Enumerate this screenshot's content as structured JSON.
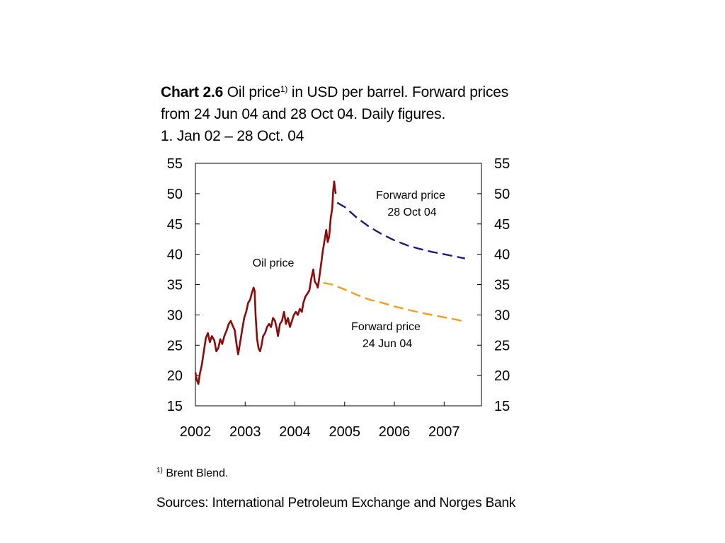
{
  "header": {
    "chart_number": "Chart 2.6",
    "title_part1": "Oil price",
    "title_superscript": "1)",
    "title_part2": "in USD per barrel. Forward prices",
    "title_line2": "from 24 Jun 04 and 28 Oct 04. Daily figures.",
    "title_line3": "1. Jan 02 – 28 Oct. 04"
  },
  "footer": {
    "footnote_marker": "1)",
    "footnote_text": "Brent Blend.",
    "sources": "Sources: International Petroleum Exchange and Norges Bank"
  },
  "chart_data": {
    "type": "line",
    "xlim": [
      2002,
      2007.75
    ],
    "ylim": [
      15,
      55
    ],
    "x_ticks": [
      "2002",
      "2003",
      "2004",
      "2005",
      "2006",
      "2007"
    ],
    "y_ticks": [
      "15",
      "20",
      "25",
      "30",
      "35",
      "40",
      "45",
      "50",
      "55"
    ],
    "grid": false,
    "colors": {
      "oil": "#8b0a0a",
      "forward_oct": "#1a1a80",
      "forward_jun": "#f59e1b"
    },
    "annotations": {
      "oil_price": "Oil price",
      "forward_oct_line1": "Forward price",
      "forward_oct_line2": "28 Oct 04",
      "forward_jun_line1": "Forward price",
      "forward_jun_line2": "24 Jun 04"
    },
    "series": [
      {
        "key": "oil_price",
        "style": "solid",
        "points": [
          [
            2002.0,
            20.5
          ],
          [
            2002.03,
            19.2
          ],
          [
            2002.06,
            18.6
          ],
          [
            2002.09,
            20.3
          ],
          [
            2002.13,
            21.8
          ],
          [
            2002.17,
            24.0
          ],
          [
            2002.21,
            26.2
          ],
          [
            2002.25,
            27.0
          ],
          [
            2002.29,
            25.5
          ],
          [
            2002.33,
            26.5
          ],
          [
            2002.38,
            25.8
          ],
          [
            2002.42,
            24.0
          ],
          [
            2002.46,
            24.5
          ],
          [
            2002.5,
            26.0
          ],
          [
            2002.54,
            25.2
          ],
          [
            2002.58,
            26.5
          ],
          [
            2002.63,
            27.5
          ],
          [
            2002.67,
            28.5
          ],
          [
            2002.71,
            29.0
          ],
          [
            2002.75,
            28.2
          ],
          [
            2002.79,
            27.5
          ],
          [
            2002.83,
            25.0
          ],
          [
            2002.86,
            23.5
          ],
          [
            2002.9,
            25.5
          ],
          [
            2002.94,
            27.5
          ],
          [
            2002.98,
            29.5
          ],
          [
            2003.02,
            30.5
          ],
          [
            2003.06,
            32.0
          ],
          [
            2003.1,
            32.5
          ],
          [
            2003.13,
            33.5
          ],
          [
            2003.17,
            34.5
          ],
          [
            2003.19,
            34.0
          ],
          [
            2003.21,
            30.0
          ],
          [
            2003.24,
            26.0
          ],
          [
            2003.27,
            24.5
          ],
          [
            2003.3,
            24.0
          ],
          [
            2003.33,
            25.0
          ],
          [
            2003.36,
            26.5
          ],
          [
            2003.4,
            27.0
          ],
          [
            2003.44,
            28.0
          ],
          [
            2003.48,
            28.5
          ],
          [
            2003.52,
            28.0
          ],
          [
            2003.56,
            29.5
          ],
          [
            2003.6,
            29.0
          ],
          [
            2003.63,
            28.0
          ],
          [
            2003.66,
            26.5
          ],
          [
            2003.7,
            28.5
          ],
          [
            2003.74,
            29.0
          ],
          [
            2003.78,
            30.5
          ],
          [
            2003.82,
            28.5
          ],
          [
            2003.86,
            29.5
          ],
          [
            2003.9,
            28.0
          ],
          [
            2003.94,
            29.0
          ],
          [
            2003.98,
            30.0
          ],
          [
            2004.02,
            30.5
          ],
          [
            2004.06,
            30.0
          ],
          [
            2004.1,
            31.0
          ],
          [
            2004.14,
            30.5
          ],
          [
            2004.17,
            32.0
          ],
          [
            2004.21,
            33.0
          ],
          [
            2004.25,
            33.5
          ],
          [
            2004.29,
            34.0
          ],
          [
            2004.33,
            36.0
          ],
          [
            2004.37,
            37.5
          ],
          [
            2004.4,
            35.5
          ],
          [
            2004.44,
            35.0
          ],
          [
            2004.46,
            34.5
          ],
          [
            2004.48,
            35.5
          ],
          [
            2004.52,
            38.0
          ],
          [
            2004.56,
            40.5
          ],
          [
            2004.6,
            42.5
          ],
          [
            2004.63,
            44.0
          ],
          [
            2004.66,
            42.0
          ],
          [
            2004.69,
            43.0
          ],
          [
            2004.72,
            46.0
          ],
          [
            2004.75,
            47.5
          ],
          [
            2004.77,
            50.5
          ],
          [
            2004.79,
            52.0
          ],
          [
            2004.81,
            50.5
          ],
          [
            2004.82,
            50.0
          ]
        ]
      },
      {
        "key": "forward_oct",
        "style": "dashed",
        "points": [
          [
            2004.85,
            48.5
          ],
          [
            2005.0,
            47.8
          ],
          [
            2005.25,
            46.0
          ],
          [
            2005.5,
            44.5
          ],
          [
            2005.75,
            43.3
          ],
          [
            2006.0,
            42.3
          ],
          [
            2006.25,
            41.5
          ],
          [
            2006.5,
            40.9
          ],
          [
            2006.75,
            40.4
          ],
          [
            2007.0,
            40.0
          ],
          [
            2007.25,
            39.6
          ],
          [
            2007.42,
            39.3
          ]
        ]
      },
      {
        "key": "forward_jun",
        "style": "dashed",
        "points": [
          [
            2004.57,
            35.3
          ],
          [
            2004.75,
            35.0
          ],
          [
            2005.0,
            34.2
          ],
          [
            2005.25,
            33.3
          ],
          [
            2005.5,
            32.5
          ],
          [
            2005.75,
            32.0
          ],
          [
            2006.0,
            31.4
          ],
          [
            2006.25,
            30.9
          ],
          [
            2006.5,
            30.4
          ],
          [
            2006.75,
            30.0
          ],
          [
            2007.0,
            29.6
          ],
          [
            2007.25,
            29.2
          ],
          [
            2007.42,
            28.9
          ]
        ]
      }
    ]
  }
}
